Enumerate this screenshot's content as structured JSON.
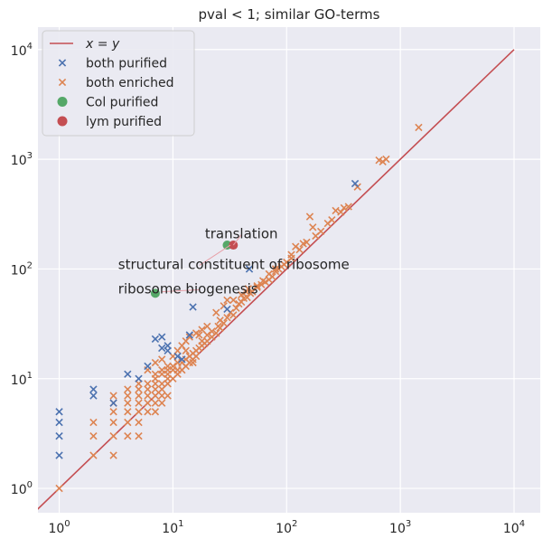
{
  "chart_data": {
    "type": "scatter",
    "title": "pval < 1; similar GO-terms",
    "xlabel": "",
    "ylabel": "",
    "xscale": "log",
    "yscale": "log",
    "xlim": [
      0.65,
      17000
    ],
    "ylim": [
      0.6,
      16000
    ],
    "x_ticks": [
      {
        "value": 1,
        "base": "10",
        "exp": "0"
      },
      {
        "value": 10,
        "base": "10",
        "exp": "1"
      },
      {
        "value": 100,
        "base": "10",
        "exp": "2"
      },
      {
        "value": 1000,
        "base": "10",
        "exp": "3"
      },
      {
        "value": 10000,
        "base": "10",
        "exp": "4"
      }
    ],
    "y_ticks": [
      {
        "value": 1,
        "base": "10",
        "exp": "0"
      },
      {
        "value": 10,
        "base": "10",
        "exp": "1"
      },
      {
        "value": 100,
        "base": "10",
        "exp": "2"
      },
      {
        "value": 1000,
        "base": "10",
        "exp": "3"
      },
      {
        "value": 10000,
        "base": "10",
        "exp": "4"
      }
    ],
    "grid": true,
    "legend_position": "top-left",
    "colors": {
      "background": "#eaeaf2",
      "grid": "#ffffff",
      "blue": "#4c72b0",
      "orange": "#dd8452",
      "green": "#55a868",
      "red": "#c44e52",
      "annotation_line": "#e8a0a8"
    },
    "reference_line": {
      "name_italic_x": "x",
      "name_eq": " = ",
      "name_italic_y": "y",
      "from": 0.6,
      "to": 10000
    },
    "series": [
      {
        "name": "both purified",
        "marker": "x",
        "color": "#4c72b0",
        "points": [
          [
            1,
            2
          ],
          [
            1,
            3
          ],
          [
            1,
            4
          ],
          [
            1,
            5
          ],
          [
            2,
            7
          ],
          [
            2,
            8
          ],
          [
            3,
            6
          ],
          [
            4,
            11
          ],
          [
            5,
            10
          ],
          [
            6,
            13
          ],
          [
            7,
            23
          ],
          [
            8,
            19
          ],
          [
            8,
            24
          ],
          [
            9,
            20
          ],
          [
            11,
            16
          ],
          [
            14,
            25
          ],
          [
            15,
            45
          ],
          [
            30,
            43
          ],
          [
            47,
            100
          ],
          [
            400,
            600
          ],
          [
            12,
            15
          ],
          [
            9,
            18
          ]
        ]
      },
      {
        "name": "both enriched",
        "marker": "x",
        "color": "#dd8452",
        "points": [
          [
            1,
            1
          ],
          [
            2,
            2
          ],
          [
            2,
            3
          ],
          [
            2,
            4
          ],
          [
            3,
            2
          ],
          [
            3,
            3
          ],
          [
            3,
            4
          ],
          [
            3,
            5
          ],
          [
            3,
            6
          ],
          [
            3,
            7
          ],
          [
            4,
            3
          ],
          [
            4,
            4
          ],
          [
            4,
            5
          ],
          [
            4,
            6
          ],
          [
            5,
            3
          ],
          [
            5,
            4
          ],
          [
            5,
            5
          ],
          [
            5,
            6
          ],
          [
            5,
            7
          ],
          [
            6,
            5
          ],
          [
            6,
            6
          ],
          [
            6,
            7
          ],
          [
            6,
            8
          ],
          [
            7,
            5
          ],
          [
            7,
            6
          ],
          [
            7,
            7
          ],
          [
            7,
            8
          ],
          [
            7,
            9
          ],
          [
            7,
            10
          ],
          [
            8,
            6
          ],
          [
            8,
            7
          ],
          [
            8,
            8
          ],
          [
            8,
            9
          ],
          [
            8,
            11
          ],
          [
            8,
            12
          ],
          [
            9,
            7
          ],
          [
            9,
            9
          ],
          [
            9,
            10
          ],
          [
            9,
            11
          ],
          [
            10,
            10
          ],
          [
            10,
            12
          ],
          [
            10,
            13
          ],
          [
            11,
            11
          ],
          [
            11,
            12
          ],
          [
            12,
            12
          ],
          [
            12,
            14
          ],
          [
            13,
            13
          ],
          [
            13,
            15
          ],
          [
            14,
            14
          ],
          [
            14,
            16
          ],
          [
            15,
            14
          ],
          [
            15,
            15
          ],
          [
            15,
            17
          ],
          [
            16,
            16
          ],
          [
            16,
            18
          ],
          [
            17,
            19
          ],
          [
            18,
            20
          ],
          [
            18,
            22
          ],
          [
            19,
            21
          ],
          [
            20,
            22
          ],
          [
            20,
            25
          ],
          [
            22,
            24
          ],
          [
            22,
            27
          ],
          [
            24,
            26
          ],
          [
            25,
            30
          ],
          [
            26,
            34
          ],
          [
            28,
            32
          ],
          [
            30,
            36
          ],
          [
            32,
            40
          ],
          [
            34,
            38
          ],
          [
            36,
            44
          ],
          [
            38,
            48
          ],
          [
            40,
            50
          ],
          [
            42,
            54
          ],
          [
            45,
            55
          ],
          [
            48,
            60
          ],
          [
            50,
            62
          ],
          [
            55,
            68
          ],
          [
            60,
            72
          ],
          [
            65,
            76
          ],
          [
            70,
            80
          ],
          [
            75,
            85
          ],
          [
            80,
            95
          ],
          [
            85,
            100
          ],
          [
            90,
            105
          ],
          [
            100,
            115
          ],
          [
            110,
            125
          ],
          [
            120,
            160
          ],
          [
            130,
            150
          ],
          [
            150,
            175
          ],
          [
            160,
            300
          ],
          [
            170,
            240
          ],
          [
            200,
            220
          ],
          [
            230,
            260
          ],
          [
            250,
            280
          ],
          [
            270,
            340
          ],
          [
            300,
            330
          ],
          [
            320,
            360
          ],
          [
            350,
            370
          ],
          [
            420,
            560
          ],
          [
            650,
            980
          ],
          [
            700,
            950
          ],
          [
            750,
            1000
          ],
          [
            1450,
            1950
          ],
          [
            7,
            14
          ],
          [
            8,
            15
          ],
          [
            9,
            13
          ],
          [
            10,
            16
          ],
          [
            11,
            18
          ],
          [
            12,
            20
          ],
          [
            13,
            22
          ],
          [
            14,
            24
          ],
          [
            16,
            26
          ],
          [
            18,
            28
          ],
          [
            20,
            30
          ],
          [
            24,
            40
          ],
          [
            28,
            46
          ],
          [
            34,
            52
          ],
          [
            40,
            58
          ],
          [
            46,
            66
          ],
          [
            55,
            70
          ],
          [
            62,
            78
          ],
          [
            70,
            90
          ],
          [
            80,
            100
          ],
          [
            95,
            110
          ],
          [
            110,
            135
          ],
          [
            140,
            170
          ],
          [
            180,
            200
          ],
          [
            6,
            12
          ],
          [
            5,
            9
          ],
          [
            4,
            8
          ],
          [
            30,
            52
          ],
          [
            44,
            62
          ],
          [
            26,
            29
          ],
          [
            17,
            25
          ],
          [
            13,
            18
          ],
          [
            11,
            14
          ],
          [
            9,
            12
          ],
          [
            7,
            11
          ],
          [
            6,
            9
          ],
          [
            5,
            8
          ],
          [
            4,
            7
          ]
        ]
      },
      {
        "name": "Col purified",
        "marker": "o",
        "color": "#55a868",
        "points": [
          [
            7,
            60
          ],
          [
            30,
            165
          ]
        ]
      },
      {
        "name": "lym purified",
        "marker": "o",
        "color": "#c44e52",
        "points": [
          [
            34,
            165
          ]
        ]
      }
    ],
    "annotations": [
      {
        "text": "translation",
        "x": 40,
        "y": 190,
        "point": [
          34,
          165
        ],
        "anchor": "middle"
      },
      {
        "text": "structural constituent of ribosome",
        "x": 3.3,
        "y": 100,
        "point": [
          32,
          165
        ],
        "anchor": "start"
      },
      {
        "text": "ribosome biogenesis",
        "x": 3.3,
        "y": 60,
        "point": [
          8,
          62
        ],
        "anchor": "start"
      }
    ]
  }
}
